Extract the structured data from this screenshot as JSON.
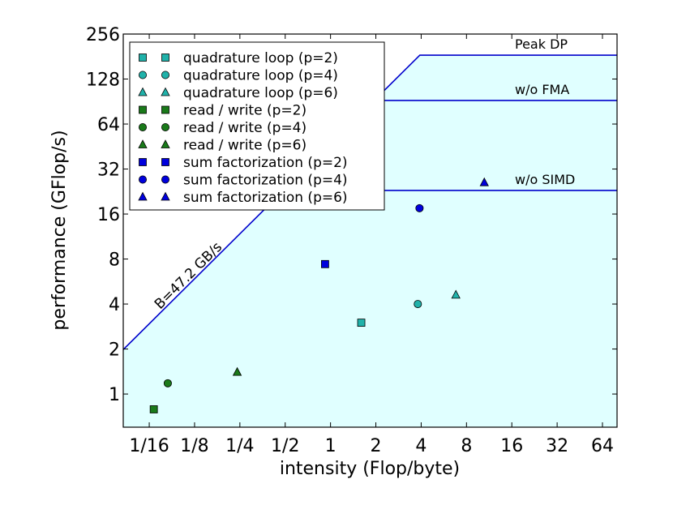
{
  "chart_data": {
    "type": "scatter",
    "title": "",
    "xlabel": "intensity (Flop/byte)",
    "ylabel": "performance (GFlop/s)",
    "xscale": "log2",
    "yscale": "log2",
    "xlim": [
      0.042,
      80
    ],
    "ylim": [
      0.6,
      256
    ],
    "x_ticks": [
      0.0625,
      0.125,
      0.25,
      0.5,
      1,
      2,
      4,
      8,
      16,
      32,
      64
    ],
    "x_tick_labels": [
      "1/16",
      "1/8",
      "1/4",
      "1/2",
      "1",
      "2",
      "4",
      "8",
      "16",
      "32",
      "64"
    ],
    "y_ticks": [
      1,
      2,
      4,
      8,
      16,
      32,
      64,
      128,
      256
    ],
    "y_tick_labels": [
      "1",
      "2",
      "4",
      "8",
      "16",
      "32",
      "64",
      "128",
      "256"
    ],
    "colors": {
      "roof": "#0000cc",
      "fill": "#e0ffff",
      "quadrature": "#20b2aa",
      "readwrite": "#1a7a1a",
      "sumfact": "#0000dd"
    },
    "roofline": {
      "bandwidth_label": "B=47.2 GB/s",
      "bandwidth_gbs": 47.2,
      "ceilings": [
        {
          "label": "Peak DP",
          "value": 185
        },
        {
          "label": "w/o FMA",
          "value": 92
        },
        {
          "label": "w/o SIMD",
          "value": 23
        }
      ]
    },
    "legend_position": "upper-left",
    "series": [
      {
        "name": "quadrature loop (p=2)",
        "marker": "square",
        "color": "quadrature",
        "x": [
          1.6
        ],
        "y": [
          3.0
        ]
      },
      {
        "name": "quadrature loop (p=4)",
        "marker": "circle",
        "color": "quadrature",
        "x": [
          3.8
        ],
        "y": [
          4.0
        ]
      },
      {
        "name": "quadrature loop (p=6)",
        "marker": "triangle",
        "color": "quadrature",
        "x": [
          6.8
        ],
        "y": [
          4.6
        ]
      },
      {
        "name": "read / write (p=2)",
        "marker": "square",
        "color": "readwrite",
        "x": [
          0.067
        ],
        "y": [
          0.79
        ]
      },
      {
        "name": "read / write (p=4)",
        "marker": "circle",
        "color": "readwrite",
        "x": [
          0.083
        ],
        "y": [
          1.18
        ]
      },
      {
        "name": "read / write (p=6)",
        "marker": "triangle",
        "color": "readwrite",
        "x": [
          0.24
        ],
        "y": [
          1.4
        ]
      },
      {
        "name": "sum factorization (p=2)",
        "marker": "square",
        "color": "sumfact",
        "x": [
          0.92
        ],
        "y": [
          7.4
        ]
      },
      {
        "name": "sum factorization (p=4)",
        "marker": "circle",
        "color": "sumfact",
        "x": [
          3.9
        ],
        "y": [
          17.5
        ]
      },
      {
        "name": "sum factorization (p=6)",
        "marker": "triangle",
        "color": "sumfact",
        "x": [
          10.5
        ],
        "y": [
          26
        ]
      }
    ]
  }
}
